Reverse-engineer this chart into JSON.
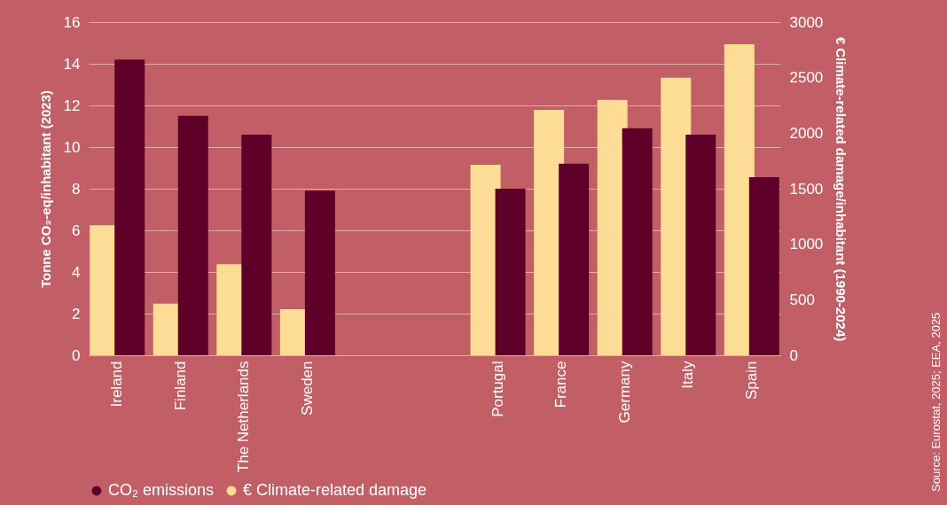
{
  "chart_data": {
    "type": "bar",
    "categories": [
      "Ireland",
      "Finland",
      "The Netherlands",
      "Sweden",
      null,
      null,
      "Portugal",
      "France",
      "Germany",
      "Italy",
      "Spain"
    ],
    "series": [
      {
        "name": "CO₂ emissions",
        "color": "#5e0028",
        "values": [
          14.2,
          11.5,
          10.6,
          7.9,
          null,
          null,
          8.0,
          9.2,
          10.9,
          10.6,
          8.55
        ]
      },
      {
        "name": "€ Climate-related damage",
        "color": "#fddc95",
        "axis": "y2",
        "values": [
          1170,
          465,
          820,
          415,
          null,
          null,
          1715,
          2210,
          2300,
          2500,
          2800
        ]
      }
    ],
    "ylabel": "Tonne CO₂-eq/inhabitant (2023)",
    "y2label": "€ Climate-related damage/inhabitant (1990-2024)",
    "ylim": [
      0,
      16
    ],
    "yticks": [
      0,
      2,
      4,
      6,
      8,
      10,
      12,
      14,
      16
    ],
    "y2lim": [
      0,
      3000
    ],
    "y2ticks": [
      0,
      500,
      1000,
      1500,
      2000,
      2500,
      3000
    ],
    "grid": "y",
    "legend": "bottom",
    "annotations": [
      "Source: Eurostat, 2025; EEA, 2025"
    ]
  }
}
